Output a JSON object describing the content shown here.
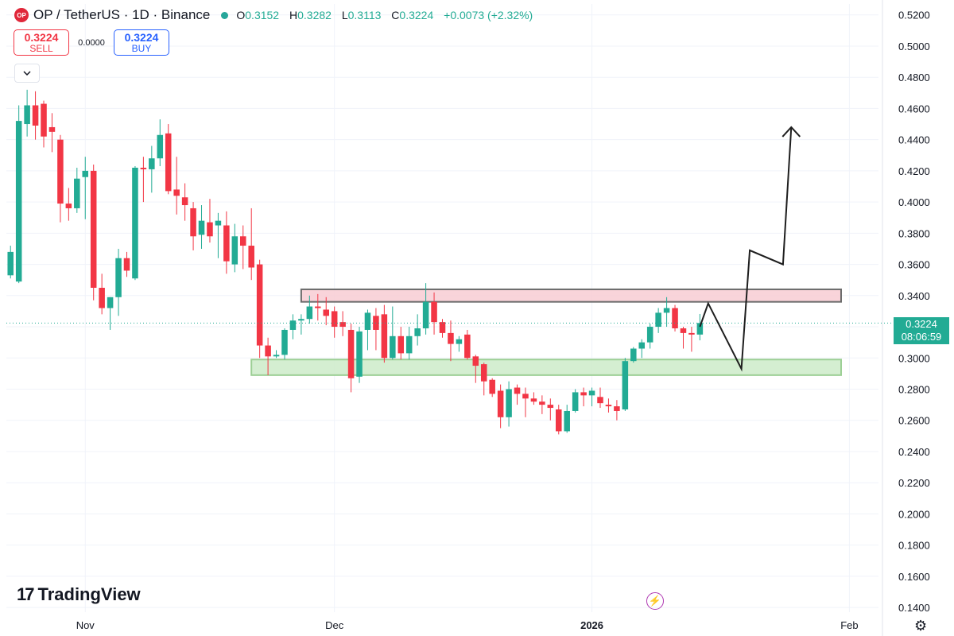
{
  "header": {
    "logo_text": "OP",
    "title": "OP / TetherUS · 1D · Binance",
    "ohlc": {
      "o_label": "O",
      "o": "0.3152",
      "h_label": "H",
      "h": "0.3282",
      "l_label": "L",
      "l": "0.3113",
      "c_label": "C",
      "c": "0.3224",
      "change": "+0.0073 (+2.32%)"
    }
  },
  "trade": {
    "sell_price": "0.3224",
    "sell_label": "SELL",
    "spread": "0.0000",
    "buy_price": "0.3224",
    "buy_label": "BUY"
  },
  "brand": "TradingView",
  "price_tag": {
    "price": "0.3224",
    "countdown": "08:06:59"
  },
  "icons": {
    "collapse": "chevron-down-icon",
    "flash": "flash-icon",
    "settings": "gear-icon"
  },
  "colors": {
    "up": "#22ab94",
    "down": "#f23645",
    "resistance_fill": "#f8cdd3",
    "support_fill": "#cdebc9"
  },
  "chart_data": {
    "type": "candlestick",
    "y_axis_ticks": [
      "0.5200",
      "0.5000",
      "0.4800",
      "0.4600",
      "0.4400",
      "0.4200",
      "0.4000",
      "0.3800",
      "0.3600",
      "0.3400",
      "0.3200",
      "0.3000",
      "0.2800",
      "0.2600",
      "0.2400",
      "0.2200",
      "0.2000",
      "0.1800",
      "0.1600",
      "0.1400"
    ],
    "ylim": [
      0.137,
      0.527
    ],
    "x_axis_labels": [
      {
        "label": "Nov",
        "date": "2025-11-01"
      },
      {
        "label": "Dec",
        "date": "2025-12-01"
      },
      {
        "label": "2026",
        "date": "2026-01-01"
      },
      {
        "label": "Feb",
        "date": "2026-02-01"
      }
    ],
    "x_range": [
      "2025-10-23",
      "2026-02-05"
    ],
    "grid": true,
    "candles": [
      {
        "date": "2025-10-23",
        "o": 0.353,
        "h": 0.372,
        "l": 0.351,
        "c": 0.368
      },
      {
        "date": "2025-10-24",
        "o": 0.349,
        "h": 0.462,
        "l": 0.348,
        "c": 0.452
      },
      {
        "date": "2025-10-25",
        "o": 0.45,
        "h": 0.472,
        "l": 0.442,
        "c": 0.462
      },
      {
        "date": "2025-10-26",
        "o": 0.462,
        "h": 0.471,
        "l": 0.44,
        "c": 0.449
      },
      {
        "date": "2025-10-27",
        "o": 0.463,
        "h": 0.465,
        "l": 0.435,
        "c": 0.442
      },
      {
        "date": "2025-10-28",
        "o": 0.448,
        "h": 0.457,
        "l": 0.432,
        "c": 0.445
      },
      {
        "date": "2025-10-29",
        "o": 0.44,
        "h": 0.443,
        "l": 0.387,
        "c": 0.399
      },
      {
        "date": "2025-10-30",
        "o": 0.399,
        "h": 0.409,
        "l": 0.388,
        "c": 0.396
      },
      {
        "date": "2025-10-31",
        "o": 0.396,
        "h": 0.422,
        "l": 0.393,
        "c": 0.415
      },
      {
        "date": "2025-11-01",
        "o": 0.416,
        "h": 0.429,
        "l": 0.389,
        "c": 0.42
      },
      {
        "date": "2025-11-02",
        "o": 0.42,
        "h": 0.424,
        "l": 0.337,
        "c": 0.345
      },
      {
        "date": "2025-11-03",
        "o": 0.345,
        "h": 0.354,
        "l": 0.328,
        "c": 0.332
      },
      {
        "date": "2025-11-04",
        "o": 0.332,
        "h": 0.339,
        "l": 0.318,
        "c": 0.339
      },
      {
        "date": "2025-11-05",
        "o": 0.339,
        "h": 0.37,
        "l": 0.327,
        "c": 0.364
      },
      {
        "date": "2025-11-06",
        "o": 0.364,
        "h": 0.368,
        "l": 0.352,
        "c": 0.356
      },
      {
        "date": "2025-11-07",
        "o": 0.351,
        "h": 0.423,
        "l": 0.35,
        "c": 0.422
      },
      {
        "date": "2025-11-08",
        "o": 0.422,
        "h": 0.429,
        "l": 0.4,
        "c": 0.421
      },
      {
        "date": "2025-11-09",
        "o": 0.421,
        "h": 0.436,
        "l": 0.406,
        "c": 0.428
      },
      {
        "date": "2025-11-10",
        "o": 0.428,
        "h": 0.453,
        "l": 0.423,
        "c": 0.443
      },
      {
        "date": "2025-11-11",
        "o": 0.444,
        "h": 0.45,
        "l": 0.405,
        "c": 0.407
      },
      {
        "date": "2025-11-12",
        "o": 0.408,
        "h": 0.429,
        "l": 0.392,
        "c": 0.404
      },
      {
        "date": "2025-11-13",
        "o": 0.403,
        "h": 0.412,
        "l": 0.388,
        "c": 0.398
      },
      {
        "date": "2025-11-14",
        "o": 0.396,
        "h": 0.4,
        "l": 0.369,
        "c": 0.378
      },
      {
        "date": "2025-11-15",
        "o": 0.379,
        "h": 0.398,
        "l": 0.37,
        "c": 0.388
      },
      {
        "date": "2025-11-16",
        "o": 0.387,
        "h": 0.402,
        "l": 0.374,
        "c": 0.378
      },
      {
        "date": "2025-11-17",
        "o": 0.385,
        "h": 0.393,
        "l": 0.364,
        "c": 0.388
      },
      {
        "date": "2025-11-18",
        "o": 0.385,
        "h": 0.394,
        "l": 0.354,
        "c": 0.362
      },
      {
        "date": "2025-11-19",
        "o": 0.36,
        "h": 0.386,
        "l": 0.355,
        "c": 0.378
      },
      {
        "date": "2025-11-20",
        "o": 0.378,
        "h": 0.385,
        "l": 0.357,
        "c": 0.372
      },
      {
        "date": "2025-11-21",
        "o": 0.372,
        "h": 0.396,
        "l": 0.35,
        "c": 0.358
      },
      {
        "date": "2025-11-22",
        "o": 0.36,
        "h": 0.363,
        "l": 0.3,
        "c": 0.308
      },
      {
        "date": "2025-11-23",
        "o": 0.308,
        "h": 0.313,
        "l": 0.289,
        "c": 0.301
      },
      {
        "date": "2025-11-24",
        "o": 0.301,
        "h": 0.305,
        "l": 0.3,
        "c": 0.302
      },
      {
        "date": "2025-11-25",
        "o": 0.302,
        "h": 0.319,
        "l": 0.299,
        "c": 0.318
      },
      {
        "date": "2025-11-26",
        "o": 0.318,
        "h": 0.328,
        "l": 0.312,
        "c": 0.324
      },
      {
        "date": "2025-11-27",
        "o": 0.324,
        "h": 0.328,
        "l": 0.315,
        "c": 0.325
      },
      {
        "date": "2025-11-28",
        "o": 0.325,
        "h": 0.34,
        "l": 0.322,
        "c": 0.333
      },
      {
        "date": "2025-11-29",
        "o": 0.333,
        "h": 0.341,
        "l": 0.324,
        "c": 0.332
      },
      {
        "date": "2025-11-30",
        "o": 0.331,
        "h": 0.339,
        "l": 0.321,
        "c": 0.327
      },
      {
        "date": "2025-12-01",
        "o": 0.33,
        "h": 0.333,
        "l": 0.313,
        "c": 0.32
      },
      {
        "date": "2025-12-02",
        "o": 0.323,
        "h": 0.33,
        "l": 0.314,
        "c": 0.32
      },
      {
        "date": "2025-12-03",
        "o": 0.318,
        "h": 0.322,
        "l": 0.278,
        "c": 0.287
      },
      {
        "date": "2025-12-04",
        "o": 0.288,
        "h": 0.32,
        "l": 0.284,
        "c": 0.317
      },
      {
        "date": "2025-12-05",
        "o": 0.318,
        "h": 0.331,
        "l": 0.305,
        "c": 0.329
      },
      {
        "date": "2025-12-06",
        "o": 0.327,
        "h": 0.332,
        "l": 0.305,
        "c": 0.318
      },
      {
        "date": "2025-12-07",
        "o": 0.328,
        "h": 0.334,
        "l": 0.297,
        "c": 0.3
      },
      {
        "date": "2025-12-08",
        "o": 0.3,
        "h": 0.333,
        "l": 0.299,
        "c": 0.314
      },
      {
        "date": "2025-12-09",
        "o": 0.314,
        "h": 0.32,
        "l": 0.299,
        "c": 0.303
      },
      {
        "date": "2025-12-10",
        "o": 0.303,
        "h": 0.32,
        "l": 0.299,
        "c": 0.314
      },
      {
        "date": "2025-12-11",
        "o": 0.314,
        "h": 0.328,
        "l": 0.308,
        "c": 0.319
      },
      {
        "date": "2025-12-12",
        "o": 0.319,
        "h": 0.348,
        "l": 0.315,
        "c": 0.336
      },
      {
        "date": "2025-12-13",
        "o": 0.336,
        "h": 0.342,
        "l": 0.315,
        "c": 0.323
      },
      {
        "date": "2025-12-14",
        "o": 0.323,
        "h": 0.325,
        "l": 0.313,
        "c": 0.316
      },
      {
        "date": "2025-12-15",
        "o": 0.316,
        "h": 0.324,
        "l": 0.298,
        "c": 0.309
      },
      {
        "date": "2025-12-16",
        "o": 0.309,
        "h": 0.314,
        "l": 0.304,
        "c": 0.312
      },
      {
        "date": "2025-12-17",
        "o": 0.315,
        "h": 0.318,
        "l": 0.299,
        "c": 0.3
      },
      {
        "date": "2025-12-18",
        "o": 0.301,
        "h": 0.302,
        "l": 0.284,
        "c": 0.295
      },
      {
        "date": "2025-12-19",
        "o": 0.296,
        "h": 0.297,
        "l": 0.276,
        "c": 0.285
      },
      {
        "date": "2025-12-20",
        "o": 0.286,
        "h": 0.287,
        "l": 0.275,
        "c": 0.277
      },
      {
        "date": "2025-12-21",
        "o": 0.279,
        "h": 0.283,
        "l": 0.255,
        "c": 0.262
      },
      {
        "date": "2025-12-22",
        "o": 0.262,
        "h": 0.285,
        "l": 0.256,
        "c": 0.28
      },
      {
        "date": "2025-12-23",
        "o": 0.281,
        "h": 0.283,
        "l": 0.27,
        "c": 0.277
      },
      {
        "date": "2025-12-24",
        "o": 0.277,
        "h": 0.281,
        "l": 0.262,
        "c": 0.274
      },
      {
        "date": "2025-12-25",
        "o": 0.274,
        "h": 0.278,
        "l": 0.27,
        "c": 0.272
      },
      {
        "date": "2025-12-26",
        "o": 0.272,
        "h": 0.276,
        "l": 0.264,
        "c": 0.27
      },
      {
        "date": "2025-12-27",
        "o": 0.27,
        "h": 0.274,
        "l": 0.26,
        "c": 0.268
      },
      {
        "date": "2025-12-28",
        "o": 0.267,
        "h": 0.27,
        "l": 0.251,
        "c": 0.253
      },
      {
        "date": "2025-12-29",
        "o": 0.253,
        "h": 0.27,
        "l": 0.252,
        "c": 0.266
      },
      {
        "date": "2025-12-30",
        "o": 0.266,
        "h": 0.28,
        "l": 0.265,
        "c": 0.278
      },
      {
        "date": "2025-12-31",
        "o": 0.278,
        "h": 0.281,
        "l": 0.269,
        "c": 0.276
      },
      {
        "date": "2026-01-01",
        "o": 0.276,
        "h": 0.281,
        "l": 0.269,
        "c": 0.279
      },
      {
        "date": "2026-01-02",
        "o": 0.275,
        "h": 0.281,
        "l": 0.268,
        "c": 0.271
      },
      {
        "date": "2026-01-03",
        "o": 0.27,
        "h": 0.274,
        "l": 0.265,
        "c": 0.269
      },
      {
        "date": "2026-01-04",
        "o": 0.269,
        "h": 0.273,
        "l": 0.26,
        "c": 0.266
      },
      {
        "date": "2026-01-05",
        "o": 0.267,
        "h": 0.3,
        "l": 0.266,
        "c": 0.298
      },
      {
        "date": "2026-01-06",
        "o": 0.298,
        "h": 0.307,
        "l": 0.297,
        "c": 0.306
      },
      {
        "date": "2026-01-07",
        "o": 0.306,
        "h": 0.312,
        "l": 0.3,
        "c": 0.31
      },
      {
        "date": "2026-01-08",
        "o": 0.31,
        "h": 0.322,
        "l": 0.306,
        "c": 0.32
      },
      {
        "date": "2026-01-09",
        "o": 0.32,
        "h": 0.332,
        "l": 0.316,
        "c": 0.329
      },
      {
        "date": "2026-01-10",
        "o": 0.329,
        "h": 0.339,
        "l": 0.32,
        "c": 0.332
      },
      {
        "date": "2026-01-11",
        "o": 0.332,
        "h": 0.334,
        "l": 0.317,
        "c": 0.319
      },
      {
        "date": "2026-01-12",
        "o": 0.319,
        "h": 0.32,
        "l": 0.306,
        "c": 0.316
      },
      {
        "date": "2026-01-13",
        "o": 0.316,
        "h": 0.32,
        "l": 0.304,
        "c": 0.315
      },
      {
        "date": "2026-01-14",
        "o": 0.315,
        "h": 0.3282,
        "l": 0.3113,
        "c": 0.3224
      }
    ],
    "annotations": {
      "resistance_zone": {
        "from_date": "2025-11-27",
        "to_date": "2026-01-31",
        "low": 0.336,
        "high": 0.344
      },
      "support_zone": {
        "from_date": "2025-11-21",
        "to_date": "2026-01-31",
        "low": 0.289,
        "high": 0.299
      },
      "projection_path": [
        {
          "date": "2026-01-14",
          "y": 0.32
        },
        {
          "date": "2026-01-15",
          "y": 0.335
        },
        {
          "date": "2026-01-19",
          "y": 0.293
        },
        {
          "date": "2026-01-20",
          "y": 0.369
        },
        {
          "date": "2026-01-24",
          "y": 0.36
        },
        {
          "date": "2026-01-25",
          "y": 0.448
        }
      ],
      "current_price_line": 0.3224
    }
  }
}
